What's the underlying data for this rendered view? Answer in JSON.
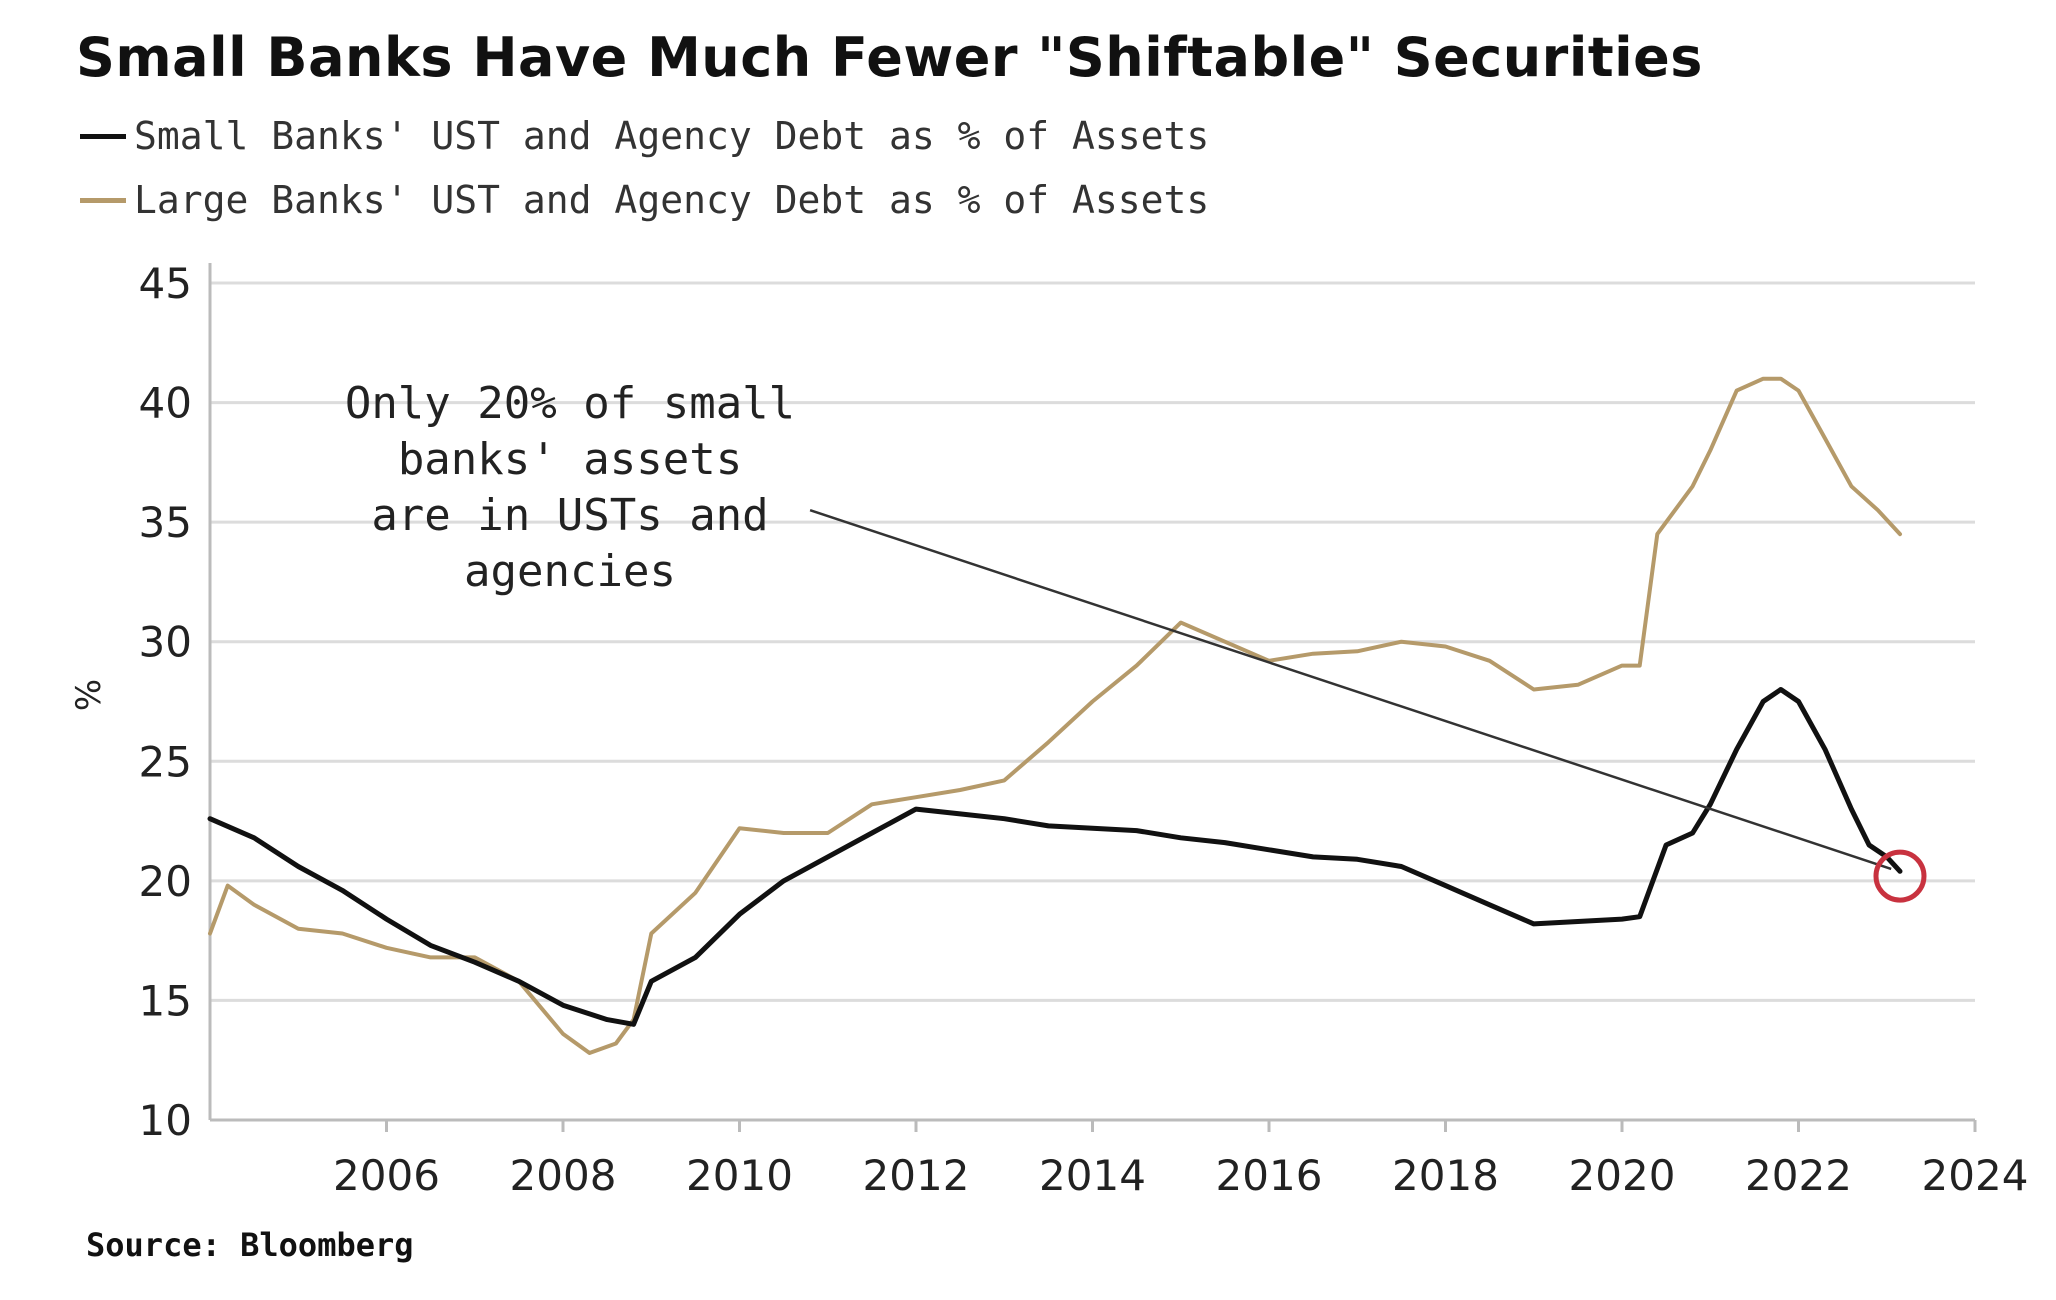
{
  "chart_data": {
    "type": "line",
    "title": "Small Banks Have Much Fewer \"Shiftable\" Securities",
    "ylabel": "%",
    "xlim": [
      2004.0,
      2024.0
    ],
    "ylim": [
      10,
      45
    ],
    "y_ticks": [
      10,
      15,
      20,
      25,
      30,
      35,
      40,
      45
    ],
    "x_ticks": [
      2006,
      2008,
      2010,
      2012,
      2014,
      2016,
      2018,
      2020,
      2022,
      2024
    ],
    "grid": true,
    "legend": "top-left",
    "source": "Source: Bloomberg",
    "annotation": {
      "lines": [
        "Only 20% of small",
        "banks' assets",
        "are in USTs and",
        "agencies"
      ],
      "from": [
        2010.8,
        35.5
      ],
      "to": [
        2023.05,
        20.5
      ],
      "circle_at": [
        2023.15,
        20.2
      ]
    },
    "series": [
      {
        "name": "Small Banks' UST and Agency Debt as % of Assets",
        "color": "#111111",
        "points": [
          [
            2004.0,
            22.6
          ],
          [
            2004.5,
            21.8
          ],
          [
            2005.0,
            20.6
          ],
          [
            2005.5,
            19.6
          ],
          [
            2006.0,
            18.4
          ],
          [
            2006.5,
            17.3
          ],
          [
            2007.0,
            16.6
          ],
          [
            2007.5,
            15.8
          ],
          [
            2008.0,
            14.8
          ],
          [
            2008.5,
            14.2
          ],
          [
            2008.8,
            14.0
          ],
          [
            2009.0,
            15.8
          ],
          [
            2009.5,
            16.8
          ],
          [
            2010.0,
            18.6
          ],
          [
            2010.5,
            20.0
          ],
          [
            2011.0,
            21.0
          ],
          [
            2011.5,
            22.0
          ],
          [
            2012.0,
            23.0
          ],
          [
            2012.5,
            22.8
          ],
          [
            2013.0,
            22.6
          ],
          [
            2013.5,
            22.3
          ],
          [
            2014.0,
            22.2
          ],
          [
            2014.5,
            22.1
          ],
          [
            2015.0,
            21.8
          ],
          [
            2015.5,
            21.6
          ],
          [
            2016.0,
            21.3
          ],
          [
            2016.5,
            21.0
          ],
          [
            2017.0,
            20.9
          ],
          [
            2017.5,
            20.6
          ],
          [
            2018.0,
            19.8
          ],
          [
            2018.5,
            19.0
          ],
          [
            2019.0,
            18.2
          ],
          [
            2019.5,
            18.3
          ],
          [
            2020.0,
            18.4
          ],
          [
            2020.2,
            18.5
          ],
          [
            2020.5,
            21.5
          ],
          [
            2020.8,
            22.0
          ],
          [
            2021.0,
            23.2
          ],
          [
            2021.3,
            25.5
          ],
          [
            2021.6,
            27.5
          ],
          [
            2021.8,
            28.0
          ],
          [
            2022.0,
            27.5
          ],
          [
            2022.3,
            25.5
          ],
          [
            2022.6,
            23.0
          ],
          [
            2022.8,
            21.5
          ],
          [
            2023.0,
            21.0
          ],
          [
            2023.15,
            20.4
          ]
        ]
      },
      {
        "name": "Large Banks' UST and Agency Debt as % of Assets",
        "color": "#b59a6a",
        "points": [
          [
            2004.0,
            17.8
          ],
          [
            2004.2,
            19.8
          ],
          [
            2004.5,
            19.0
          ],
          [
            2005.0,
            18.0
          ],
          [
            2005.5,
            17.8
          ],
          [
            2006.0,
            17.2
          ],
          [
            2006.5,
            16.8
          ],
          [
            2007.0,
            16.8
          ],
          [
            2007.5,
            15.8
          ],
          [
            2008.0,
            13.6
          ],
          [
            2008.3,
            12.8
          ],
          [
            2008.6,
            13.2
          ],
          [
            2008.8,
            14.2
          ],
          [
            2009.0,
            17.8
          ],
          [
            2009.5,
            19.5
          ],
          [
            2010.0,
            22.2
          ],
          [
            2010.5,
            22.0
          ],
          [
            2011.0,
            22.0
          ],
          [
            2011.5,
            23.2
          ],
          [
            2012.0,
            23.5
          ],
          [
            2012.5,
            23.8
          ],
          [
            2013.0,
            24.2
          ],
          [
            2013.5,
            25.8
          ],
          [
            2014.0,
            27.5
          ],
          [
            2014.5,
            29.0
          ],
          [
            2015.0,
            30.8
          ],
          [
            2015.5,
            30.0
          ],
          [
            2016.0,
            29.2
          ],
          [
            2016.5,
            29.5
          ],
          [
            2017.0,
            29.6
          ],
          [
            2017.5,
            30.0
          ],
          [
            2018.0,
            29.8
          ],
          [
            2018.5,
            29.2
          ],
          [
            2019.0,
            28.0
          ],
          [
            2019.5,
            28.2
          ],
          [
            2020.0,
            29.0
          ],
          [
            2020.2,
            29.0
          ],
          [
            2020.4,
            34.5
          ],
          [
            2020.8,
            36.5
          ],
          [
            2021.0,
            38.0
          ],
          [
            2021.3,
            40.5
          ],
          [
            2021.6,
            41.0
          ],
          [
            2021.8,
            41.0
          ],
          [
            2022.0,
            40.5
          ],
          [
            2022.3,
            38.5
          ],
          [
            2022.6,
            36.5
          ],
          [
            2022.9,
            35.5
          ],
          [
            2023.15,
            34.5
          ]
        ]
      }
    ]
  }
}
